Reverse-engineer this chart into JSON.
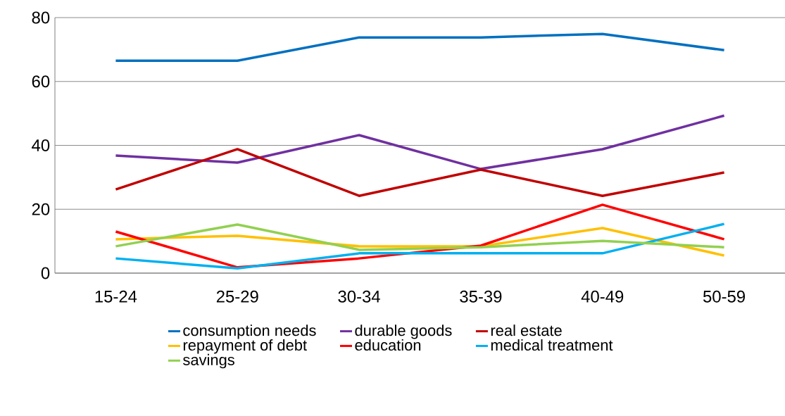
{
  "chart_data": {
    "type": "line",
    "categories": [
      "15-24",
      "25-29",
      "30-34",
      "35-39",
      "40-49",
      "50-59"
    ],
    "ylim": [
      0,
      80
    ],
    "yticks": [
      0,
      20,
      40,
      60,
      80
    ],
    "grid": "y",
    "legend": "bottom",
    "marker": "none",
    "line_style": "solid",
    "series": [
      {
        "name": "consumption needs",
        "color": "#0070c0",
        "values": [
          66.5,
          66.5,
          73.8,
          73.8,
          74.9,
          69.8
        ]
      },
      {
        "name": "durable goods",
        "color": "#7030a0",
        "values": [
          36.8,
          34.6,
          43.2,
          32.6,
          38.8,
          49.3
        ]
      },
      {
        "name": "real estate",
        "color": "#c00000",
        "values": [
          26.2,
          38.8,
          24.2,
          32.4,
          24.2,
          31.5
        ]
      },
      {
        "name": "repayment of debt",
        "color": "#ffc000",
        "values": [
          10.6,
          11.7,
          8.4,
          8.4,
          14.1,
          5.5
        ]
      },
      {
        "name": "education",
        "color": "#ff0000",
        "values": [
          13.0,
          1.8,
          4.6,
          8.6,
          21.4,
          10.6
        ]
      },
      {
        "name": "medical treatment",
        "color": "#00b0f0",
        "values": [
          4.6,
          1.5,
          6.2,
          6.2,
          6.2,
          15.4
        ]
      },
      {
        "name": "savings",
        "color": "#92d050",
        "values": [
          8.4,
          15.2,
          7.3,
          8.1,
          10.1,
          8.1
        ]
      }
    ]
  }
}
